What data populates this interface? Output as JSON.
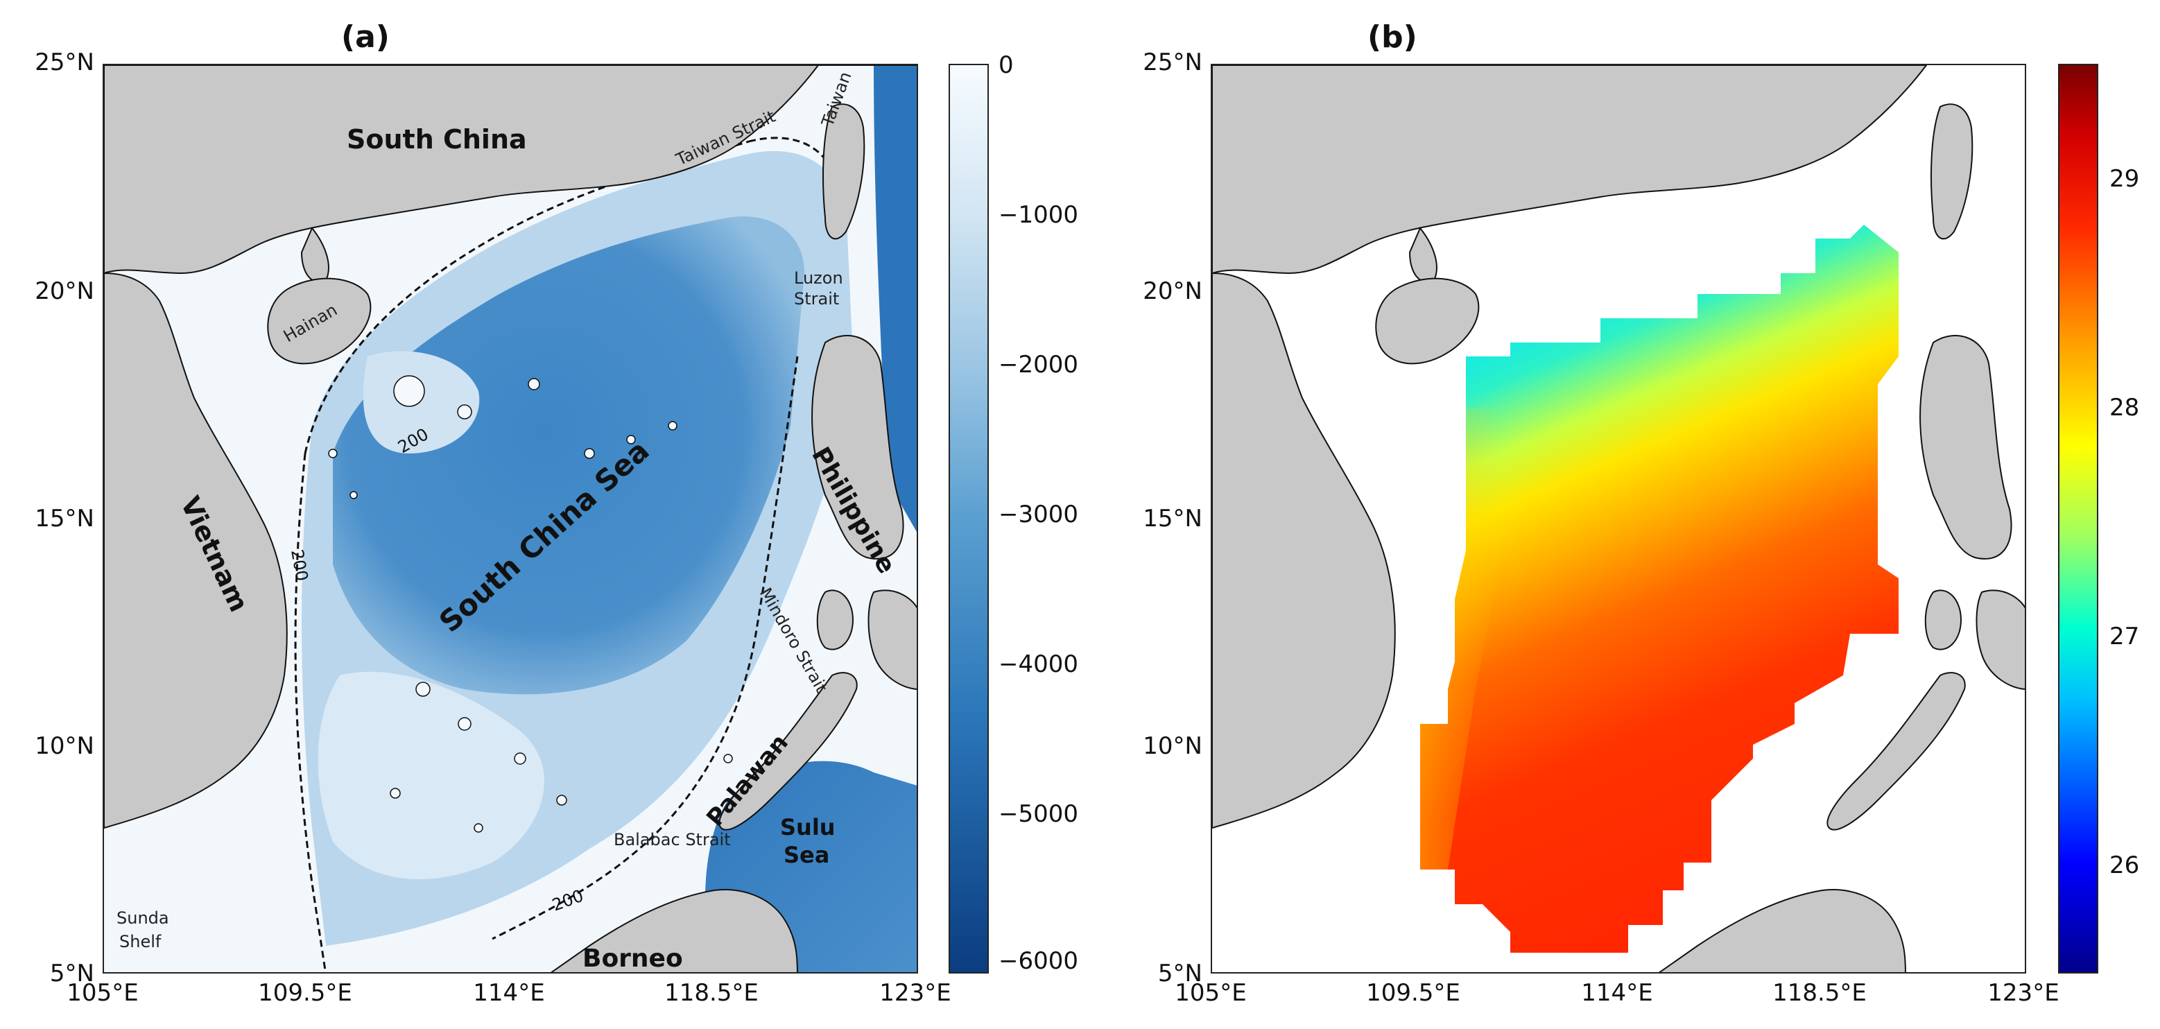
{
  "panel_a": {
    "title": "(a)",
    "y_ticks": [
      "25°N",
      "20°N",
      "15°N",
      "10°N",
      "5°N"
    ],
    "x_ticks": [
      "105°E",
      "109.5°E",
      "114°E",
      "118.5°E",
      "123°E"
    ],
    "labels": {
      "south_china": "South China",
      "taiwan_strait": "Taiwan Strait",
      "taiwan": "Taiwan",
      "luzon_strait_1": "Luzon",
      "luzon_strait_2": "Strait",
      "hainan": "Hainan",
      "vietnam": "Vietnam",
      "south_china_sea": "South China Sea",
      "philippine": "Philippine",
      "mindoro_strait": "Mindoro Strait",
      "palawan": "Palawan",
      "sulu_1": "Sulu",
      "sulu_2": "Sea",
      "balabac_strait": "Balabac Strait",
      "sunda_1": "Sunda",
      "sunda_2": "Shelf",
      "borneo": "Borneo",
      "contour": "200"
    },
    "colorbar": {
      "ticks": [
        "0",
        "−1000",
        "−2000",
        "−3000",
        "−4000",
        "−5000",
        "−6000"
      ],
      "values": [
        0,
        -1000,
        -2000,
        -3000,
        -4000,
        -5000,
        -6000
      ],
      "range": [
        -6000,
        0
      ],
      "colors": [
        "#0b3d80",
        "#2a76b9",
        "#5a9fd0",
        "#9cc6e4",
        "#d3e6f3",
        "#f7fbff"
      ]
    }
  },
  "panel_b": {
    "title": "(b)",
    "y_ticks": [
      "25°N",
      "20°N",
      "15°N",
      "10°N",
      "5°N"
    ],
    "x_ticks": [
      "105°E",
      "109.5°E",
      "114°E",
      "118.5°E",
      "123°E"
    ],
    "colorbar": {
      "ticks": [
        "29",
        "28",
        "27",
        "26"
      ],
      "values": [
        29,
        28,
        27,
        26
      ],
      "range": [
        25.5,
        29.6
      ],
      "colors": [
        "#00008b",
        "#0000ff",
        "#00bfff",
        "#00ffd0",
        "#a0ff60",
        "#ffff00",
        "#ff9900",
        "#ff2a00",
        "#a00000"
      ]
    }
  },
  "colors": {
    "land": "#c8c8c8",
    "shelf": "#f2f7fc",
    "deep": "#3a82c4",
    "mid": "#8fbde0"
  }
}
